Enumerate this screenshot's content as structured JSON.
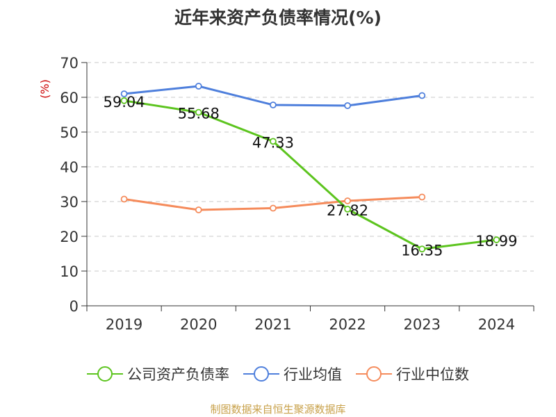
{
  "chart_data": {
    "type": "line",
    "title": "近年来资产负债率情况(%)",
    "ylabel": "(%)",
    "categories": [
      "2019",
      "2020",
      "2021",
      "2022",
      "2023",
      "2024"
    ],
    "ylim": [
      0,
      70
    ],
    "yticks": [
      0,
      10,
      20,
      30,
      40,
      50,
      60,
      70
    ],
    "grid": true,
    "legend_position": "bottom",
    "series": [
      {
        "name": "公司资产负债率",
        "color": "#5cc41e",
        "values": [
          59.04,
          55.68,
          47.33,
          27.82,
          16.35,
          18.99
        ],
        "labels": [
          "59.04",
          "55.68",
          "47.33",
          "27.82",
          "16.35",
          "18.99"
        ]
      },
      {
        "name": "行业均值",
        "color": "#4e7fdc",
        "values": [
          61.0,
          63.2,
          57.8,
          57.6,
          60.5,
          null
        ]
      },
      {
        "name": "行业中位数",
        "color": "#f58b5b",
        "values": [
          30.7,
          27.6,
          28.1,
          30.2,
          31.3,
          null
        ]
      }
    ],
    "source": "制图数据来自恒生聚源数据库"
  }
}
